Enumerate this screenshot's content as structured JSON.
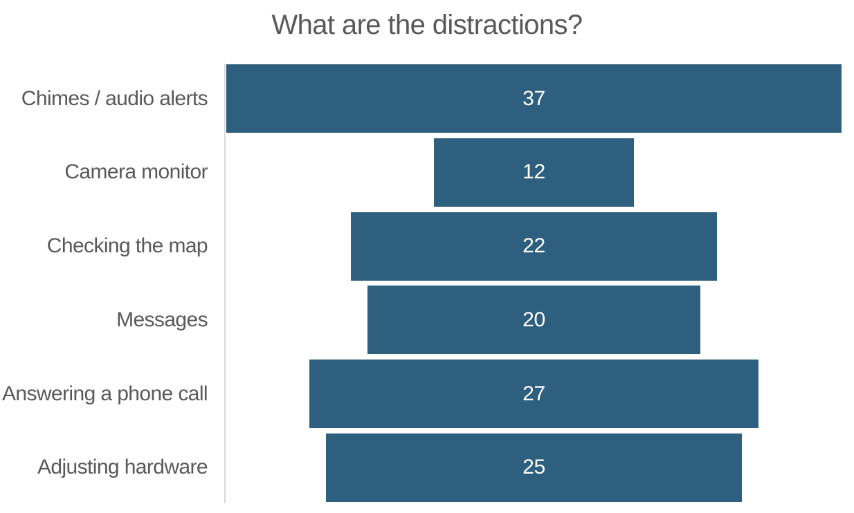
{
  "title": "What are the distractions?",
  "colors": {
    "bar_fill": "#2e5f7e",
    "value_text": "#ffffff",
    "category_text": "#595959",
    "title_text": "#595959",
    "axis_line": "#d9d9d9",
    "background": "#ffffff"
  },
  "chart_data": {
    "type": "bar",
    "subtype": "funnel-horizontal-centered",
    "title": "What are the distractions?",
    "categories": [
      "Chimes / audio alerts",
      "Camera monitor",
      "Checking the map",
      "Messages",
      "Answering a phone call",
      "Adjusting hardware"
    ],
    "values": [
      37,
      12,
      22,
      20,
      27,
      25
    ],
    "xlabel": "",
    "ylabel": "",
    "xlim": [
      0,
      37
    ],
    "grid": false,
    "legend": "none",
    "value_labels": "inside-center",
    "bar_color": "#2e5f7e",
    "value_label_color": "#ffffff"
  }
}
